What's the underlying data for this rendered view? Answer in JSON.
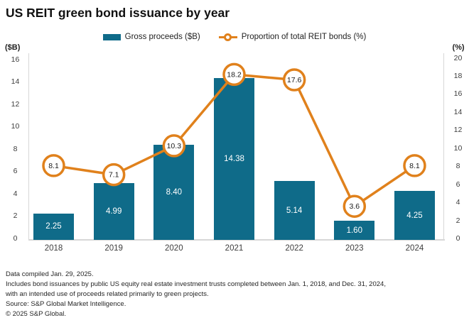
{
  "title": "US REIT green bond issuance by year",
  "legend": {
    "items": [
      {
        "label": "Gross proceeds ($B)",
        "marker": "bar-swatch"
      },
      {
        "label": "Proportion of total REIT bonds (%)",
        "marker": "line-circle"
      }
    ]
  },
  "colors": {
    "bar": "#0f6b89",
    "line": "#e0811c",
    "marker_fill": "#ffffff",
    "axis_line": "#d7d7d7",
    "bar_label_text": "#ffffff",
    "marker_label_text": "#1a1a1a",
    "tick_text": "#3d3d3d",
    "title_text": "#111111",
    "footer_text": "#262626"
  },
  "chart_data": {
    "type": "bar+line combo",
    "categories": [
      "2018",
      "2019",
      "2020",
      "2021",
      "2022",
      "2023",
      "2024"
    ],
    "series": [
      {
        "name": "Gross proceeds ($B)",
        "type": "bar",
        "axis": "left",
        "values": [
          2.25,
          4.99,
          8.4,
          14.38,
          5.14,
          1.6,
          4.25
        ],
        "data_labels": [
          "2.25",
          "4.99",
          "8.40",
          "14.38",
          "5.14",
          "1.60",
          "4.25"
        ]
      },
      {
        "name": "Proportion of total REIT bonds (%)",
        "type": "line",
        "axis": "right",
        "values": [
          8.1,
          7.1,
          10.3,
          18.2,
          17.6,
          3.6,
          8.1
        ],
        "data_labels": [
          "8.1",
          "7.1",
          "10.3",
          "18.2",
          "17.6",
          "3.6",
          "8.1"
        ]
      }
    ],
    "left_axis": {
      "unit": "($B)",
      "min": 0,
      "max": 16,
      "step": 2
    },
    "right_axis": {
      "unit": "(%)",
      "min": 0,
      "max": 20,
      "step": 2
    },
    "grid": false,
    "legend_position": "top-center"
  },
  "footer": {
    "lines": [
      "Data compiled Jan. 29, 2025.",
      "Includes bond issuances by public US equity real estate investment trusts completed between Jan. 1, 2018, and Dec. 31, 2024,",
      "with an intended use of proceeds related primarily to green projects.",
      "Source: S&P Global Market Intelligence.",
      "© 2025 S&P Global."
    ]
  }
}
